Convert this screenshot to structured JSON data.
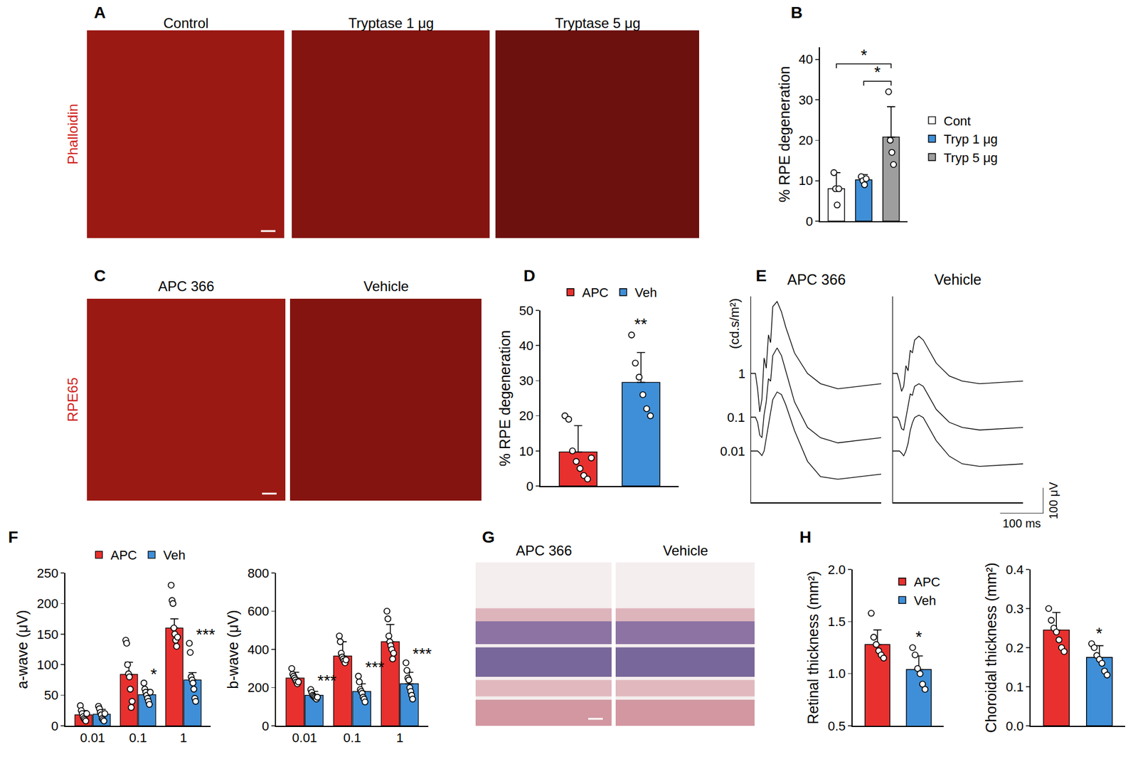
{
  "figure": {
    "image_panels": [
      {
        "panel": "A",
        "stain": "Phalloidin",
        "color": "#d0221b",
        "titles": [
          "Control",
          "Tryptase 1 μg",
          "Tryptase 5 μg"
        ]
      },
      {
        "panel": "C",
        "stain": "RPE65",
        "color": "#d0221b",
        "titles": [
          "APC 366",
          "Vehicle"
        ]
      },
      {
        "panel": "G",
        "titles": [
          "APC 366",
          "Vehicle"
        ]
      }
    ]
  },
  "chart_data": [
    {
      "panel": "B",
      "type": "bar",
      "y_label": "% RPE degeneration",
      "tick_labels": "y",
      "legend": "right",
      "categories": [
        "Cont",
        "Tryp 1 μg",
        "Tryp 5 μg"
      ],
      "colors": [
        "#ffffff",
        "#3f8fd8",
        "#9e9e9e"
      ],
      "values": [
        8,
        10.2,
        20.8
      ],
      "errors": [
        4,
        1.3,
        7.5
      ],
      "points": [
        [
          12,
          8,
          4,
          8
        ],
        [
          11,
          10,
          9,
          10.5
        ],
        [
          32,
          20,
          17,
          14
        ]
      ],
      "ylim": [
        0,
        43
      ],
      "yticks": [
        0,
        10,
        20,
        30,
        40
      ],
      "comparisons": [
        {
          "from": "Tryp 1 μg",
          "to": "Tryp 5 μg",
          "label": "*"
        },
        {
          "from": "Cont",
          "to": "Tryp 5 μg",
          "label": "*"
        }
      ]
    },
    {
      "panel": "D",
      "type": "bar",
      "y_label": "% RPE degeneration",
      "tick_labels": "y",
      "legend": "top",
      "categories": [
        "APC",
        "Veh"
      ],
      "colors": [
        "#e8312f",
        "#3f8fd8"
      ],
      "values": [
        9.7,
        29.5
      ],
      "errors": [
        7.5,
        8.5
      ],
      "points": [
        [
          20,
          19,
          10,
          7,
          5,
          3,
          2,
          8
        ],
        [
          43,
          35,
          31,
          26,
          22,
          20
        ]
      ],
      "significance": [
        null,
        "**"
      ],
      "ylim": [
        0,
        50
      ],
      "yticks": [
        0,
        10,
        20,
        30,
        40,
        50
      ]
    },
    {
      "panel": "E",
      "type": "line",
      "tick_labels": false,
      "intensity_unit": "(cd.s/m²)",
      "intensities": [
        "1",
        "0.1",
        "0.01"
      ],
      "x": [
        0,
        10,
        15,
        20,
        25,
        30,
        35,
        40,
        45,
        50,
        60,
        70,
        80,
        100,
        130,
        160,
        200,
        250,
        300
      ],
      "xlim": [
        0,
        300
      ],
      "ylim": [
        -200,
        300
      ],
      "groups": [
        {
          "title": "APC 366",
          "traces": [
            {
              "values": [
                0,
                0,
                -60,
                -150,
                -100,
                60,
                20,
                150,
                120,
                260,
                280,
                240,
                180,
                80,
                0,
                -40,
                -60,
                -50,
                -40
              ]
            },
            {
              "values": [
                0,
                0,
                -20,
                -70,
                -80,
                10,
                60,
                150,
                140,
                240,
                270,
                240,
                180,
                60,
                -40,
                -80,
                -100,
                -90,
                -80
              ]
            },
            {
              "values": [
                0,
                0,
                0,
                -8,
                -18,
                0,
                50,
                110,
                160,
                200,
                230,
                220,
                180,
                80,
                -40,
                -100,
                -110,
                -100,
                -90
              ]
            }
          ]
        },
        {
          "title": "Vehicle",
          "traces": [
            {
              "values": [
                0,
                0,
                -30,
                -70,
                -50,
                30,
                10,
                90,
                80,
                130,
                145,
                130,
                100,
                40,
                -10,
                -30,
                -40,
                -35,
                -30
              ]
            },
            {
              "values": [
                0,
                0,
                -15,
                -45,
                -50,
                0,
                40,
                90,
                85,
                120,
                130,
                120,
                90,
                30,
                -20,
                -40,
                -50,
                -45,
                -40
              ]
            },
            {
              "values": [
                0,
                0,
                0,
                -8,
                -19,
                0,
                30,
                80,
                110,
                130,
                140,
                130,
                100,
                40,
                -20,
                -50,
                -60,
                -55,
                -50
              ]
            }
          ]
        }
      ],
      "scale_bars": {
        "y": {
          "value": 100,
          "label": "100 μV"
        },
        "x": {
          "value": 100,
          "label": "100 ms"
        }
      }
    },
    {
      "panel": "F",
      "type": "bar",
      "y_label": "a-wave (μV)",
      "legend": "top",
      "categories": [
        "0.01",
        "0.1",
        "1"
      ],
      "series": [
        {
          "name": "APC",
          "color": "#e8312f",
          "values": [
            18,
            84,
            160
          ],
          "errors": [
            7,
            20,
            15
          ],
          "points": [
            [
              33,
              25,
              20,
              15,
              12,
              10,
              8,
              20
            ],
            [
              140,
              135,
              100,
              85,
              80,
              60,
              30,
              40
            ],
            [
              230,
              205,
              200,
              160,
              150,
              140,
              130,
              145
            ]
          ]
        },
        {
          "name": "Veh",
          "color": "#3f8fd8",
          "values": [
            19,
            51,
            75
          ],
          "errors": [
            8,
            8,
            12
          ],
          "points": [
            [
              32,
              28,
              22,
              18,
              12,
              10,
              8,
              20
            ],
            [
              70,
              60,
              55,
              50,
              45,
              40,
              35,
              55
            ],
            [
              135,
              120,
              80,
              75,
              70,
              60,
              45,
              40
            ]
          ],
          "significance": [
            null,
            "*",
            "***"
          ]
        }
      ],
      "ylim": [
        0,
        250
      ],
      "yticks": [
        0,
        50,
        100,
        150,
        200,
        250
      ]
    },
    {
      "type": "bar",
      "y_label": "b-wave (μV)",
      "categories": [
        "0.01",
        "0.1",
        "1"
      ],
      "series": [
        {
          "name": "APC",
          "color": "#e8312f",
          "values": [
            250,
            365,
            440
          ],
          "errors": [
            30,
            75,
            90
          ],
          "points": [
            [
              300,
              270,
              260,
              250,
              240,
              230,
              220,
              230
            ],
            [
              470,
              440,
              380,
              360,
              350,
              340,
              330,
              345
            ],
            [
              600,
              560,
              470,
              440,
              420,
              400,
              350,
              380
            ]
          ]
        },
        {
          "name": "Veh",
          "color": "#3f8fd8",
          "values": [
            160,
            180,
            220
          ],
          "errors": [
            20,
            40,
            60
          ],
          "points": [
            [
              190,
              175,
              160,
              155,
              150,
              145,
              140,
              150
            ],
            [
              260,
              230,
              190,
              180,
              170,
              150,
              140,
              125
            ],
            [
              330,
              290,
              250,
              240,
              200,
              180,
              160,
              140
            ]
          ],
          "significance": [
            "***",
            "***",
            "***"
          ]
        }
      ],
      "ylim": [
        0,
        800
      ],
      "yticks": [
        0,
        200,
        400,
        600,
        800
      ]
    },
    {
      "panel": "H",
      "type": "bar",
      "y_label": "Retinal thickness (mm²)",
      "tick_labels": "y",
      "legend": "top-right",
      "categories": [
        "APC",
        "Veh"
      ],
      "colors": [
        "#e8312f",
        "#3f8fd8"
      ],
      "values": [
        1.28,
        1.04
      ],
      "errors": [
        0.14,
        0.13
      ],
      "points": [
        [
          1.58,
          1.35,
          1.28,
          1.22,
          1.18,
          1.15
        ],
        [
          1.25,
          1.18,
          1.05,
          1.0,
          0.9,
          0.85
        ]
      ],
      "significance": [
        null,
        "*"
      ],
      "ylim": [
        0.5,
        2.0
      ],
      "yticks": [
        0.5,
        {
          "value": 1,
          "label": "1.0"
        },
        1.5,
        {
          "value": 2,
          "label": "2.0"
        }
      ]
    },
    {
      "type": "bar",
      "y_label": "Choroidal thickness (mm²)",
      "tick_labels": "y",
      "categories": [
        "APC",
        "Veh"
      ],
      "colors": [
        "#e8312f",
        "#3f8fd8"
      ],
      "values": [
        0.245,
        0.175
      ],
      "errors": [
        0.045,
        0.03
      ],
      "points": [
        [
          0.3,
          0.27,
          0.25,
          0.24,
          0.22,
          0.2,
          0.19
        ],
        [
          0.21,
          0.2,
          0.18,
          0.17,
          0.16,
          0.14,
          0.13
        ]
      ],
      "significance": [
        null,
        "*"
      ],
      "ylim": [
        0,
        0.4
      ],
      "yticks": [
        {
          "value": 0,
          "label": "0.0"
        },
        0.1,
        0.2,
        0.3,
        0.4
      ]
    }
  ]
}
